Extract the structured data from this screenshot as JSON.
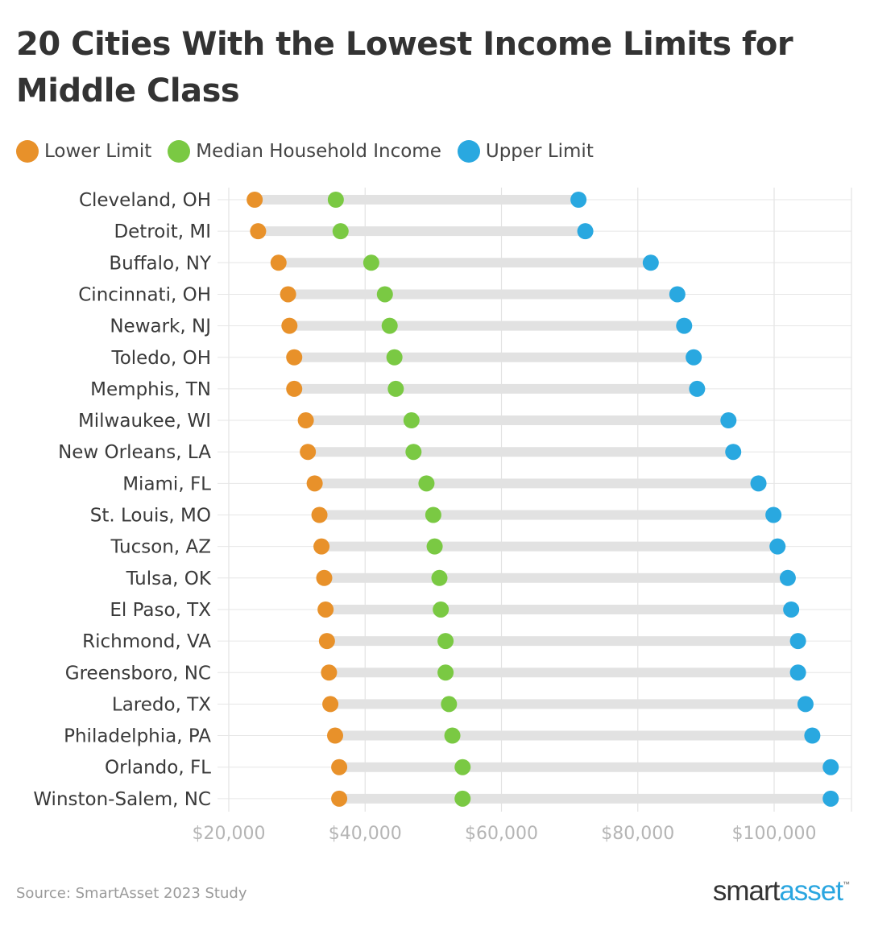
{
  "chart_data": {
    "type": "dumbbell",
    "title": "20 Cities With the Lowest Income Limits for Middle Class",
    "xlabel": "",
    "ylabel": "",
    "xlim": [
      20000,
      110000
    ],
    "x_ticks": [
      20000,
      40000,
      60000,
      80000,
      100000
    ],
    "x_tick_labels": [
      "$20,000",
      "$40,000",
      "$60,000",
      "$80,000",
      "$100,000"
    ],
    "legend": [
      {
        "name": "Lower Limit",
        "color": "#e8912a"
      },
      {
        "name": "Median Household Income",
        "color": "#7ac943"
      },
      {
        "name": "Upper Limit",
        "color": "#29a8e0"
      }
    ],
    "categories": [
      "Cleveland, OH",
      "Detroit, MI",
      "Buffalo, NY",
      "Cincinnati, OH",
      "Newark, NJ",
      "Toledo, OH",
      "Memphis, TN",
      "Milwaukee, WI",
      "New Orleans, LA",
      "Miami, FL",
      "St. Louis, MO",
      "Tucson, AZ",
      "Tulsa, OK",
      "El Paso, TX",
      "Richmond, VA",
      "Greensboro, NC",
      "Laredo, TX",
      "Philadelphia, PA",
      "Orlando, FL",
      "Winston-Salem, NC"
    ],
    "series": [
      {
        "name": "Lower Limit",
        "values": [
          23800,
          24300,
          27300,
          28700,
          28900,
          29600,
          29600,
          31300,
          31600,
          32600,
          33300,
          33600,
          34000,
          34200,
          34400,
          34700,
          34900,
          35600,
          36200,
          36200
        ]
      },
      {
        "name": "Median Household Income",
        "values": [
          35700,
          36400,
          40900,
          42900,
          43600,
          44300,
          44500,
          46800,
          47100,
          49000,
          50000,
          50200,
          50900,
          51100,
          51800,
          51800,
          52300,
          52800,
          54300,
          54300
        ]
      },
      {
        "name": "Upper Limit",
        "values": [
          71300,
          72300,
          81900,
          85800,
          86800,
          88200,
          88700,
          93300,
          94000,
          97700,
          99900,
          100500,
          102000,
          102500,
          103500,
          103500,
          104600,
          105600,
          108300,
          108300
        ]
      }
    ]
  },
  "source": "Source: SmartAsset 2023 Study",
  "brand": {
    "smart": "smart",
    "asset": "asset",
    "tm": "™"
  }
}
